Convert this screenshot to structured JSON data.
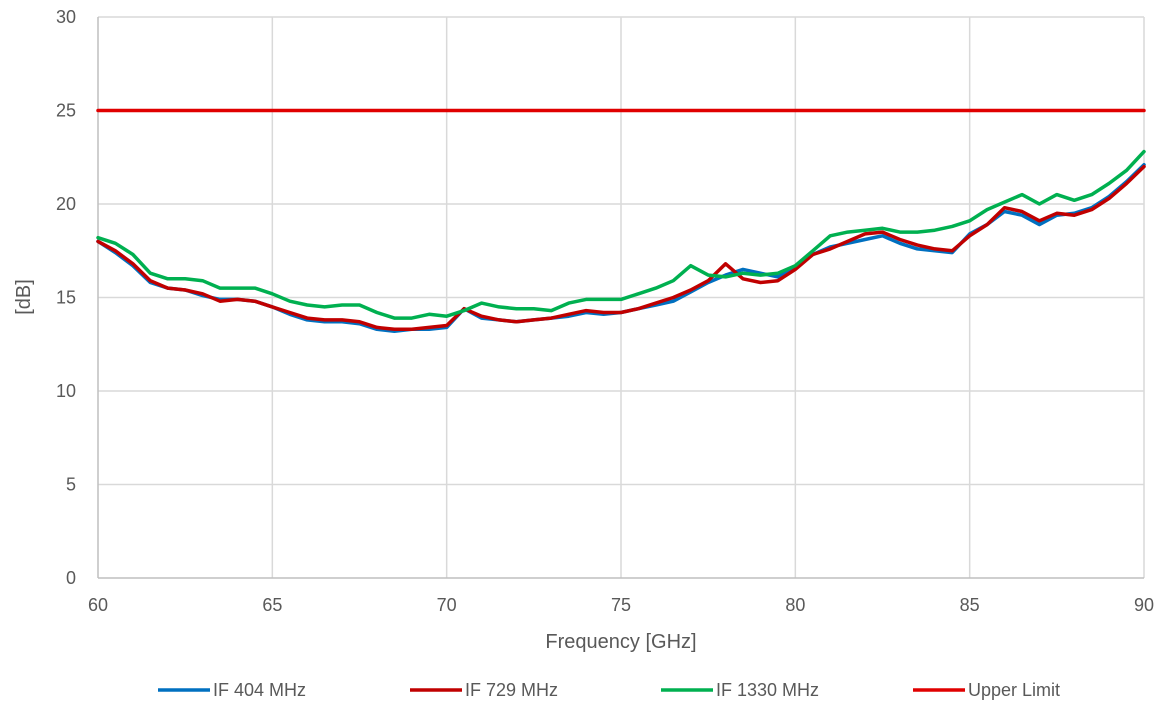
{
  "chart_data": {
    "type": "line",
    "xlabel": "Frequency [GHz]",
    "ylabel": "[dB]",
    "xlim": [
      60,
      90
    ],
    "ylim": [
      0,
      30
    ],
    "xticks": [
      60,
      65,
      70,
      75,
      80,
      85,
      90
    ],
    "yticks": [
      0,
      5,
      10,
      15,
      20,
      25,
      30
    ],
    "grid": true,
    "legend_position": "bottom",
    "series": [
      {
        "name": "IF 404 MHz",
        "color": "#0070C0",
        "x": [
          60,
          60.5,
          61,
          61.5,
          62,
          62.5,
          63,
          63.5,
          64,
          64.5,
          65,
          65.5,
          66,
          66.5,
          67,
          67.5,
          68,
          68.5,
          69,
          69.5,
          70,
          70.5,
          71,
          71.5,
          72,
          72.5,
          73,
          73.5,
          74,
          74.5,
          75,
          75.5,
          76,
          76.5,
          77,
          77.5,
          78,
          78.5,
          79,
          79.5,
          80,
          80.5,
          81,
          81.5,
          82,
          82.5,
          83,
          83.5,
          84,
          84.5,
          85,
          85.5,
          86,
          86.5,
          87,
          87.5,
          88,
          88.5,
          89,
          89.5,
          90
        ],
        "y": [
          18.0,
          17.4,
          16.7,
          15.8,
          15.5,
          15.4,
          15.1,
          14.9,
          14.9,
          14.8,
          14.5,
          14.1,
          13.8,
          13.7,
          13.7,
          13.6,
          13.3,
          13.2,
          13.3,
          13.3,
          13.4,
          14.4,
          13.9,
          13.8,
          13.7,
          13.8,
          13.9,
          14.0,
          14.2,
          14.1,
          14.2,
          14.4,
          14.6,
          14.8,
          15.3,
          15.8,
          16.2,
          16.5,
          16.3,
          16.1,
          16.6,
          17.3,
          17.7,
          17.9,
          18.1,
          18.3,
          17.9,
          17.6,
          17.5,
          17.4,
          18.4,
          18.9,
          19.6,
          19.4,
          18.9,
          19.4,
          19.5,
          19.8,
          20.4,
          21.2,
          22.1
        ]
      },
      {
        "name": "IF 729 MHz",
        "color": "#C00000",
        "x": [
          60,
          60.5,
          61,
          61.5,
          62,
          62.5,
          63,
          63.5,
          64,
          64.5,
          65,
          65.5,
          66,
          66.5,
          67,
          67.5,
          68,
          68.5,
          69,
          69.5,
          70,
          70.5,
          71,
          71.5,
          72,
          72.5,
          73,
          73.5,
          74,
          74.5,
          75,
          75.5,
          76,
          76.5,
          77,
          77.5,
          78,
          78.5,
          79,
          79.5,
          80,
          80.5,
          81,
          81.5,
          82,
          82.5,
          83,
          83.5,
          84,
          84.5,
          85,
          85.5,
          86,
          86.5,
          87,
          87.5,
          88,
          88.5,
          89,
          89.5,
          90
        ],
        "y": [
          18.0,
          17.5,
          16.8,
          15.9,
          15.5,
          15.4,
          15.2,
          14.8,
          14.9,
          14.8,
          14.5,
          14.2,
          13.9,
          13.8,
          13.8,
          13.7,
          13.4,
          13.3,
          13.3,
          13.4,
          13.5,
          14.4,
          14.0,
          13.8,
          13.7,
          13.8,
          13.9,
          14.1,
          14.3,
          14.2,
          14.2,
          14.4,
          14.7,
          15.0,
          15.4,
          15.9,
          16.8,
          16.0,
          15.8,
          15.9,
          16.5,
          17.3,
          17.6,
          18.0,
          18.4,
          18.5,
          18.1,
          17.8,
          17.6,
          17.5,
          18.3,
          18.9,
          19.8,
          19.6,
          19.1,
          19.5,
          19.4,
          19.7,
          20.3,
          21.1,
          22.0
        ]
      },
      {
        "name": "IF 1330 MHz",
        "color": "#00B050",
        "x": [
          60,
          60.5,
          61,
          61.5,
          62,
          62.5,
          63,
          63.5,
          64,
          64.5,
          65,
          65.5,
          66,
          66.5,
          67,
          67.5,
          68,
          68.5,
          69,
          69.5,
          70,
          70.5,
          71,
          71.5,
          72,
          72.5,
          73,
          73.5,
          74,
          74.5,
          75,
          75.5,
          76,
          76.5,
          77,
          77.5,
          78,
          78.5,
          79,
          79.5,
          80,
          80.5,
          81,
          81.5,
          82,
          82.5,
          83,
          83.5,
          84,
          84.5,
          85,
          85.5,
          86,
          86.5,
          87,
          87.5,
          88,
          88.5,
          89,
          89.5,
          90
        ],
        "y": [
          18.2,
          17.9,
          17.3,
          16.3,
          16.0,
          16.0,
          15.9,
          15.5,
          15.5,
          15.5,
          15.2,
          14.8,
          14.6,
          14.5,
          14.6,
          14.6,
          14.2,
          13.9,
          13.9,
          14.1,
          14.0,
          14.3,
          14.7,
          14.5,
          14.4,
          14.4,
          14.3,
          14.7,
          14.9,
          14.9,
          14.9,
          15.2,
          15.5,
          15.9,
          16.7,
          16.2,
          16.1,
          16.3,
          16.2,
          16.3,
          16.7,
          17.5,
          18.3,
          18.5,
          18.6,
          18.7,
          18.5,
          18.5,
          18.6,
          18.8,
          19.1,
          19.7,
          20.1,
          20.5,
          20.0,
          20.5,
          20.2,
          20.5,
          21.1,
          21.8,
          22.8
        ]
      },
      {
        "name": "Upper Limit",
        "color": "#E00000",
        "x": [
          60,
          90
        ],
        "y": [
          25,
          25
        ]
      }
    ]
  }
}
